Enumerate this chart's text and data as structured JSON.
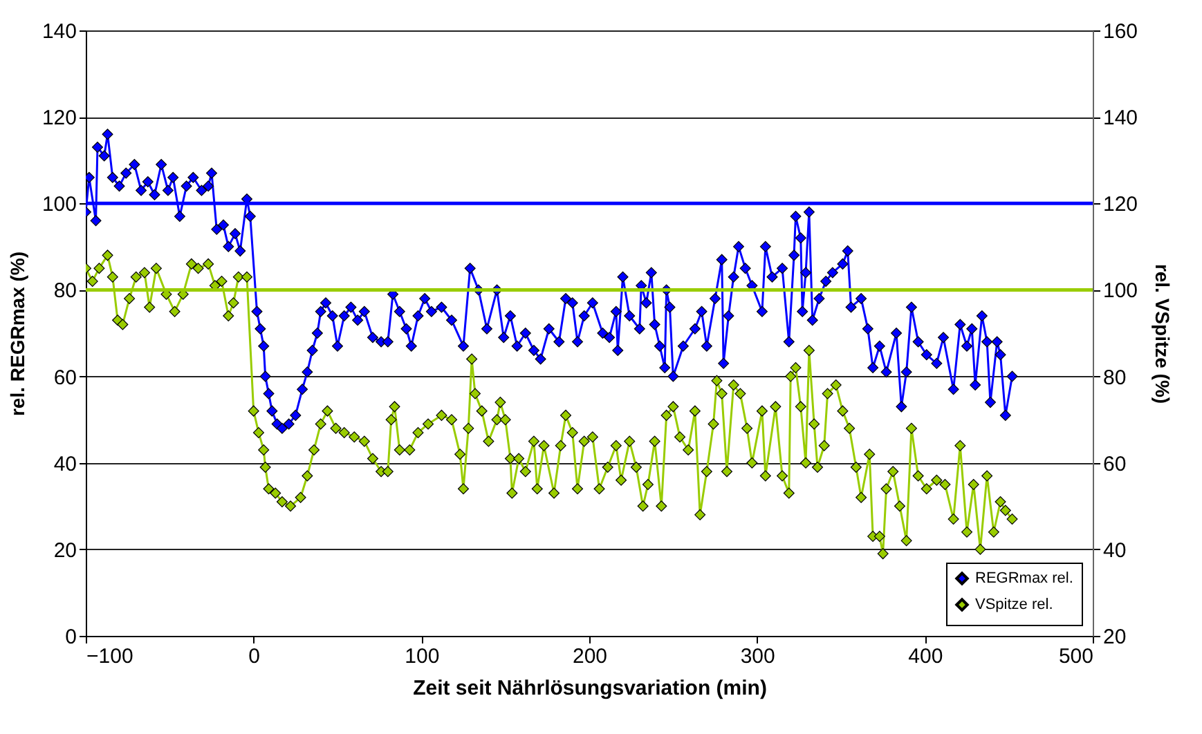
{
  "chart_data": {
    "type": "line",
    "xlabel": "Zeit seit Nährlösungsvariation (min)",
    "ylabel": "rel. REGRmax (%)",
    "y2label": "rel. VSpitze (%)",
    "xlim": [
      -100,
      500
    ],
    "xticks": [
      -100,
      0,
      100,
      200,
      300,
      400,
      500
    ],
    "ylim": [
      0,
      140
    ],
    "yticks": [
      0,
      20,
      40,
      60,
      80,
      100,
      120,
      140
    ],
    "y2lim": [
      20,
      160
    ],
    "y2ticks": [
      20,
      40,
      60,
      80,
      100,
      120,
      140,
      160
    ],
    "grid": "y",
    "legend": "bottom right",
    "marker": "diamond",
    "line_style": "solid",
    "ref_lines": [
      {
        "axis": "y",
        "value": 100,
        "color": "#0000ff"
      },
      {
        "axis": "y2",
        "value": 100,
        "color": "#99cc00"
      }
    ],
    "series": [
      {
        "name": "REGRmax rel.",
        "color": "#0000ff",
        "axis": "y",
        "x": [
          -100,
          -98,
          -94,
          -93,
          -89,
          -87,
          -84,
          -80,
          -76,
          -71,
          -67,
          -63,
          -59,
          -55,
          -51,
          -48,
          -44,
          -40,
          -36,
          -31,
          -27,
          -25,
          -22,
          -18,
          -15,
          -11,
          -8,
          -4,
          -2,
          2,
          4,
          6,
          7,
          9,
          11,
          14,
          17,
          21,
          25,
          29,
          32,
          35,
          38,
          40,
          43,
          47,
          50,
          54,
          58,
          62,
          66,
          71,
          76,
          80,
          83,
          87,
          91,
          94,
          98,
          102,
          106,
          112,
          118,
          125,
          129,
          134,
          139,
          145,
          149,
          153,
          157,
          162,
          167,
          171,
          176,
          182,
          186,
          190,
          193,
          197,
          202,
          208,
          212,
          216,
          217,
          220,
          224,
          230,
          231,
          234,
          237,
          239,
          242,
          245,
          246,
          248,
          250,
          256,
          263,
          267,
          270,
          275,
          279,
          280,
          283,
          286,
          289,
          293,
          297,
          303,
          305,
          309,
          315,
          319,
          322,
          323,
          326,
          327,
          329,
          331,
          333,
          337,
          341,
          345,
          351,
          354,
          356,
          362,
          366,
          369,
          373,
          377,
          383,
          386,
          389,
          392,
          396,
          401,
          407,
          411,
          417,
          421,
          425,
          428,
          430,
          434,
          437,
          439,
          443,
          445,
          448,
          452
        ],
        "values": [
          98,
          106,
          96,
          113,
          111,
          116,
          106,
          104,
          107,
          109,
          103,
          105,
          102,
          109,
          103,
          106,
          97,
          104,
          106,
          103,
          104,
          107,
          94,
          95,
          90,
          93,
          89,
          101,
          97,
          75,
          71,
          67,
          60,
          56,
          52,
          49,
          48,
          49,
          51,
          57,
          61,
          66,
          70,
          75,
          77,
          74,
          67,
          74,
          76,
          73,
          75,
          69,
          68,
          68,
          79,
          75,
          71,
          67,
          74,
          78,
          75,
          76,
          73,
          67,
          85,
          80,
          71,
          80,
          69,
          74,
          67,
          70,
          66,
          64,
          71,
          68,
          78,
          77,
          68,
          74,
          77,
          70,
          69,
          75,
          66,
          83,
          74,
          71,
          81,
          77,
          84,
          72,
          67,
          62,
          80,
          76,
          60,
          67,
          71,
          75,
          67,
          78,
          87,
          63,
          74,
          83,
          90,
          85,
          81,
          75,
          90,
          83,
          85,
          68,
          88,
          97,
          92,
          75,
          84,
          98,
          73,
          78,
          82,
          84,
          86,
          89,
          76,
          78,
          71,
          62,
          67,
          61,
          70,
          53,
          61,
          76,
          68,
          65,
          63,
          69,
          57,
          72,
          67,
          71,
          58,
          74,
          68,
          54,
          68,
          65,
          51,
          60
        ]
      },
      {
        "name": "VSpitze rel.",
        "color": "#99cc00",
        "axis": "y2",
        "x": [
          -100,
          -96,
          -92,
          -87,
          -84,
          -81,
          -78,
          -74,
          -70,
          -65,
          -62,
          -58,
          -52,
          -47,
          -42,
          -37,
          -33,
          -27,
          -23,
          -19,
          -15,
          -12,
          -9,
          -4,
          0,
          3,
          6,
          7,
          9,
          13,
          17,
          22,
          28,
          32,
          36,
          40,
          44,
          49,
          54,
          60,
          66,
          71,
          76,
          80,
          82,
          84,
          87,
          93,
          98,
          104,
          112,
          118,
          123,
          125,
          128,
          130,
          132,
          136,
          140,
          145,
          147,
          150,
          153,
          154,
          158,
          162,
          167,
          169,
          173,
          179,
          183,
          186,
          190,
          193,
          197,
          202,
          206,
          211,
          216,
          219,
          224,
          228,
          232,
          235,
          239,
          243,
          246,
          250,
          254,
          259,
          263,
          266,
          270,
          274,
          276,
          279,
          282,
          286,
          290,
          294,
          297,
          303,
          305,
          311,
          315,
          319,
          320,
          323,
          326,
          329,
          331,
          334,
          336,
          340,
          342,
          347,
          351,
          355,
          359,
          362,
          367,
          369,
          373,
          375,
          377,
          381,
          385,
          389,
          392,
          396,
          401,
          407,
          412,
          417,
          421,
          425,
          429,
          433,
          437,
          441,
          445,
          448,
          452
        ],
        "values": [
          105,
          102,
          105,
          108,
          103,
          93,
          92,
          98,
          103,
          104,
          96,
          105,
          99,
          95,
          99,
          106,
          105,
          106,
          101,
          102,
          94,
          97,
          103,
          103,
          72,
          67,
          63,
          59,
          54,
          53,
          51,
          50,
          52,
          57,
          63,
          69,
          72,
          68,
          67,
          66,
          65,
          61,
          58,
          58,
          70,
          73,
          63,
          63,
          67,
          69,
          71,
          70,
          62,
          54,
          68,
          84,
          76,
          72,
          65,
          70,
          74,
          70,
          61,
          53,
          61,
          58,
          65,
          54,
          64,
          53,
          64,
          71,
          67,
          54,
          65,
          66,
          54,
          59,
          64,
          56,
          65,
          59,
          50,
          55,
          65,
          50,
          71,
          73,
          66,
          63,
          72,
          48,
          58,
          69,
          79,
          76,
          58,
          78,
          76,
          68,
          60,
          72,
          57,
          73,
          57,
          53,
          80,
          82,
          73,
          60,
          86,
          69,
          59,
          64,
          76,
          78,
          72,
          68,
          59,
          52,
          62,
          43,
          43,
          39,
          54,
          58,
          50,
          42,
          68,
          57,
          54,
          56,
          55,
          47,
          64,
          44,
          55,
          40,
          57,
          44,
          51,
          49,
          47
        ]
      }
    ]
  }
}
